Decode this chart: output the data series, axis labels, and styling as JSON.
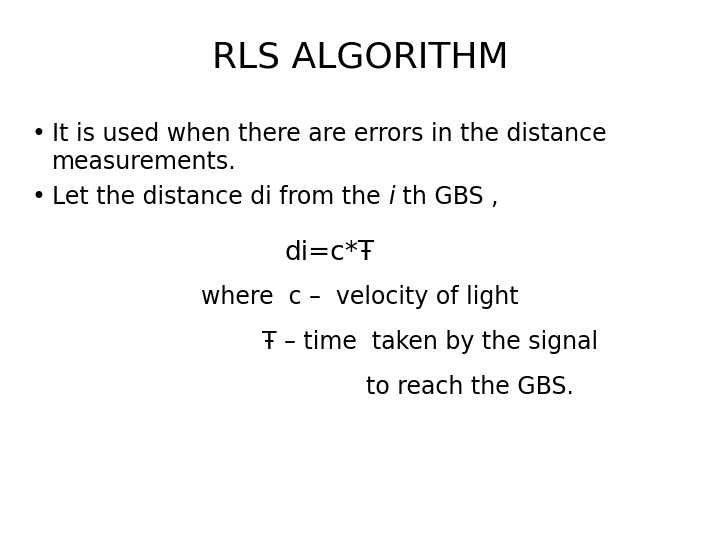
{
  "title": "RLS ALGORITHM",
  "title_fontsize": 26,
  "background_color": "#ffffff",
  "text_color": "#000000",
  "bullet1_line1": "It is used when there are errors in the distance",
  "bullet1_line2": "measurements.",
  "bullet2_intro": "Let the distance di from the ",
  "bullet2_italic": "i",
  "bullet2_rest": " th GBS ,",
  "line_di": "di=c*Ŧ",
  "line_where": "where  c –  velocity of light",
  "line_tau": "Ŧ – time  taken by the signal",
  "line_reach": "to reach the GBS.",
  "body_fontsize": 17,
  "small_fontsize": 17
}
